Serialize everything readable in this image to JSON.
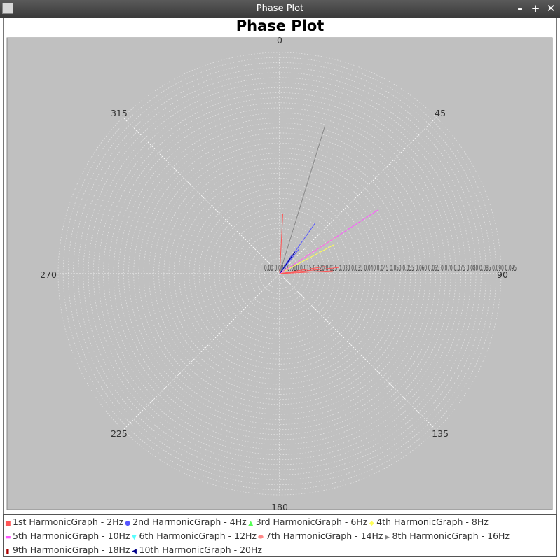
{
  "window": {
    "title": "Phase Plot",
    "buttons": {
      "minimize": "–",
      "maximize": "+",
      "close": "✕"
    }
  },
  "chart_data": {
    "type": "polar",
    "title": "Phase Plot",
    "angle_ticks": [
      "0",
      "45",
      "90",
      "135",
      "180",
      "225",
      "270",
      "315"
    ],
    "radius_label_strip": "0.00 0.005 0.010 0.015 0.020 0.025 0.030 0.035 0.040 0.045 0.050 0.055 0.060 0.065 0.070 0.075 0.080 0.085 0.090 0.095",
    "radius_label_start": "0.00",
    "radius_label_end": "0.095",
    "r_max": 0.1,
    "background": "#c0c0c0",
    "grid_color": "#e6e6e6",
    "grid": true,
    "series": [
      {
        "name": "1st HarmonicGraph - 2Hz",
        "color": "#ff5555",
        "marker": "square",
        "vectors": [
          [
            81,
            0.021
          ],
          [
            84,
            0.027
          ],
          [
            87,
            0.024
          ],
          [
            3,
            0.027
          ]
        ]
      },
      {
        "name": "2nd HarmonicGraph - 4Hz",
        "color": "#5555ff",
        "marker": "circle",
        "vectors": [
          [
            35,
            0.028
          ],
          [
            38,
            0.014
          ],
          [
            33,
            0.01
          ]
        ]
      },
      {
        "name": "3rd HarmonicGraph - 6Hz",
        "color": "#55ff55",
        "marker": "triangle-up",
        "vectors": []
      },
      {
        "name": "4th HarmonicGraph - 8Hz",
        "color": "#ffff55",
        "marker": "diamond",
        "vectors": [
          [
            57,
            0.031
          ],
          [
            62,
            0.028
          ]
        ]
      },
      {
        "name": "5th HarmonicGraph - 10Hz",
        "color": "#ff55ff",
        "marker": "rect-h",
        "vectors": [
          [
            57,
            0.053
          ]
        ]
      },
      {
        "name": "6th HarmonicGraph - 12Hz",
        "color": "#55ffff",
        "marker": "triangle-down",
        "vectors": []
      },
      {
        "name": "7th HarmonicGraph - 14Hz",
        "color": "#ff8888",
        "marker": "ellipse",
        "vectors": []
      },
      {
        "name": "8th HarmonicGraph - 16Hz",
        "color": "#888888",
        "marker": "triangle-right",
        "vectors": [
          [
            17,
            0.07
          ]
        ]
      },
      {
        "name": "9th HarmonicGraph - 18Hz",
        "color": "#aa0000",
        "marker": "rect-v",
        "vectors": []
      },
      {
        "name": "10th HarmonicGraph - 20Hz",
        "color": "#000088",
        "marker": "triangle-left",
        "vectors": [
          [
            35,
            0.012
          ]
        ]
      }
    ]
  }
}
